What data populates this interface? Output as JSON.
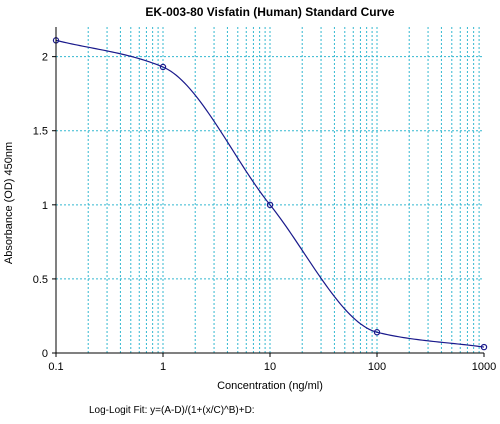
{
  "chart_data": {
    "type": "scatter",
    "title": "EK-003-80 Visfatin (Human) Standard Curve",
    "xlabel": "Concentration (ng/ml)",
    "ylabel": "Absorbance (OD) 450nm",
    "x_scale": "log",
    "xlim": [
      0.1,
      1000
    ],
    "ylim": [
      0,
      2.2
    ],
    "x_ticks": [
      0.1,
      1,
      10,
      100,
      1000
    ],
    "x_tick_labels": [
      "0.1",
      "1",
      "10",
      "100",
      "1000"
    ],
    "y_ticks": [
      0,
      0.5,
      1,
      1.5,
      2
    ],
    "y_tick_labels": [
      "0",
      "0.5",
      "1",
      "1.5",
      "2"
    ],
    "grid": true,
    "points": [
      {
        "x": 0.1,
        "y": 2.11
      },
      {
        "x": 1,
        "y": 1.93
      },
      {
        "x": 10,
        "y": 1.0
      },
      {
        "x": 100,
        "y": 0.14
      },
      {
        "x": 1000,
        "y": 0.04
      }
    ],
    "fit_formula": "Log-Logit Fit: y=(A-D)/(1+(x/C)^B)+D:",
    "colors": {
      "grid": "#33b8d0",
      "curve": "#1a1a8c",
      "points": "#1a1a8c",
      "axes": "#000000"
    }
  }
}
